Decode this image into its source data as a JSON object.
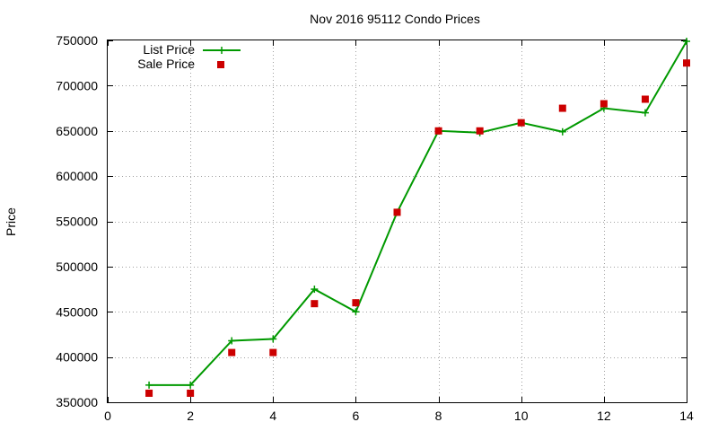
{
  "chart_data": {
    "type": "line",
    "title": "Nov 2016 95112 Condo Prices",
    "xlabel": "",
    "ylabel": "Price",
    "xlim": [
      0,
      14
    ],
    "ylim": [
      350000,
      750000
    ],
    "xticks": [
      0,
      2,
      4,
      6,
      8,
      10,
      12,
      14
    ],
    "yticks": [
      350000,
      400000,
      450000,
      500000,
      550000,
      600000,
      650000,
      700000,
      750000
    ],
    "grid": true,
    "legend_position": "top-left",
    "series": [
      {
        "name": "List Price",
        "style": "line-with-plus-markers",
        "color": "#009900",
        "x": [
          1,
          2,
          3,
          4,
          5,
          6,
          7,
          8,
          9,
          10,
          11,
          12,
          13,
          14
        ],
        "y": [
          369000,
          369000,
          418000,
          420000,
          475000,
          450000,
          560000,
          650000,
          648000,
          659000,
          649000,
          675000,
          670000,
          749000
        ]
      },
      {
        "name": "Sale Price",
        "style": "square-markers",
        "color": "#cc0000",
        "x": [
          1,
          2,
          3,
          4,
          5,
          6,
          7,
          8,
          9,
          10,
          11,
          12,
          13,
          14
        ],
        "y": [
          360000,
          360000,
          405000,
          405000,
          459000,
          460000,
          560000,
          650000,
          650000,
          659000,
          675000,
          680000,
          685000,
          725000
        ]
      }
    ]
  }
}
